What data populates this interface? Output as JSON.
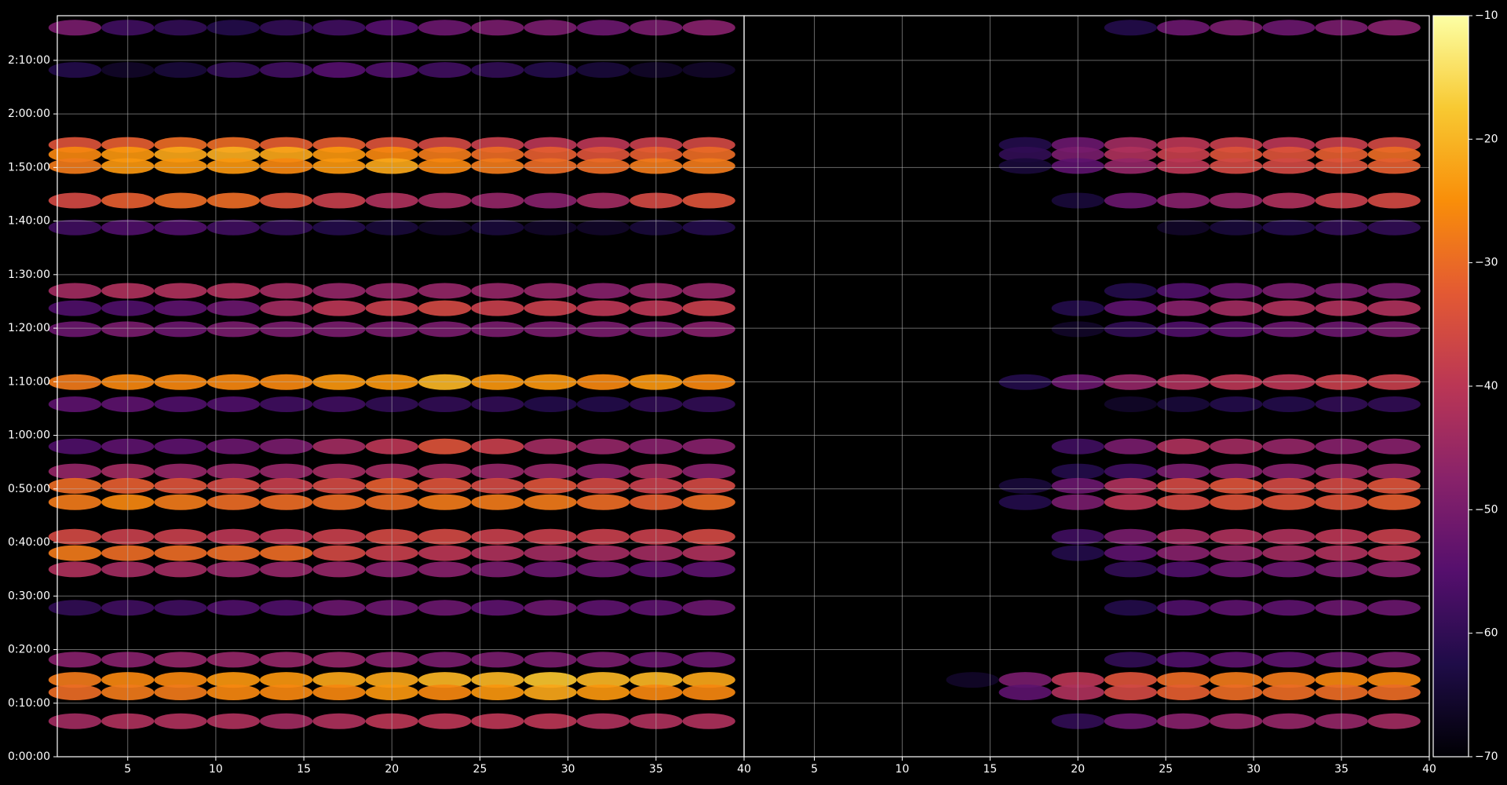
{
  "chart_data": {
    "type": "heatmap",
    "colormap": "inferno",
    "grid": true,
    "x": [
      2,
      5,
      8,
      11,
      14,
      17,
      20,
      23,
      26,
      29,
      32,
      35,
      38
    ],
    "y": [
      8166,
      7692,
      6853,
      6745,
      6616,
      6229,
      5928,
      5218,
      5024,
      4788,
      4196,
      3948,
      3475,
      3195,
      3034,
      2851,
      2464,
      2281,
      2098,
      1668,
      1087,
      861,
      721,
      398
    ],
    "xlim": [
      1,
      40
    ],
    "xticks": [
      5,
      10,
      15,
      20,
      25,
      30,
      35,
      40
    ],
    "ylim": [
      0,
      8300
    ],
    "yticks": [
      {
        "value": 0,
        "label": "0:00:00"
      },
      {
        "value": 600,
        "label": "0:10:00"
      },
      {
        "value": 1200,
        "label": "0:20:00"
      },
      {
        "value": 1800,
        "label": "0:30:00"
      },
      {
        "value": 2400,
        "label": "0:40:00"
      },
      {
        "value": 3000,
        "label": "0:50:00"
      },
      {
        "value": 3600,
        "label": "1:00:00"
      },
      {
        "value": 4200,
        "label": "1:10:00"
      },
      {
        "value": 4800,
        "label": "1:20:00"
      },
      {
        "value": 5400,
        "label": "1:30:00"
      },
      {
        "value": 6000,
        "label": "1:40:00"
      },
      {
        "value": 6600,
        "label": "1:50:00"
      },
      {
        "value": 7200,
        "label": "2:00:00"
      },
      {
        "value": 7800,
        "label": "2:10:00"
      }
    ],
    "clim": [
      -70,
      -10
    ],
    "cticks": [
      {
        "value": -70,
        "label": "−70"
      },
      {
        "value": -60,
        "label": "−60"
      },
      {
        "value": -50,
        "label": "−50"
      },
      {
        "value": -40,
        "label": "−40"
      },
      {
        "value": -30,
        "label": "−30"
      },
      {
        "value": -20,
        "label": "−20"
      },
      {
        "value": -10,
        "label": "−10"
      }
    ],
    "panels": [
      {
        "values": [
          [
            -50,
            -58,
            -60,
            -62,
            -60,
            -58,
            -55,
            -52,
            -50,
            -50,
            -52,
            -50,
            -48
          ],
          [
            -62,
            -66,
            -64,
            -60,
            -58,
            -55,
            -56,
            -58,
            -60,
            -62,
            -64,
            -66,
            -66
          ],
          [
            -34,
            -32,
            -30,
            -30,
            -32,
            -32,
            -34,
            -36,
            -38,
            -40,
            -40,
            -38,
            -36
          ],
          [
            -26,
            -24,
            -22,
            -21,
            -22,
            -24,
            -26,
            -28,
            -30,
            -32,
            -34,
            -32,
            -30
          ],
          [
            -28,
            -24,
            -24,
            -24,
            -26,
            -24,
            -22,
            -26,
            -28,
            -30,
            -30,
            -28,
            -28
          ],
          [
            -36,
            -32,
            -30,
            -30,
            -34,
            -38,
            -42,
            -44,
            -46,
            -48,
            -44,
            -36,
            -34
          ],
          [
            -58,
            -56,
            -56,
            -58,
            -60,
            -62,
            -64,
            -66,
            -64,
            -66,
            -66,
            -64,
            -62
          ],
          [
            -44,
            -42,
            -42,
            -42,
            -44,
            -46,
            -46,
            -46,
            -46,
            -46,
            -48,
            -46,
            -46
          ],
          [
            -56,
            -56,
            -54,
            -52,
            -44,
            -40,
            -38,
            -36,
            -38,
            -38,
            -40,
            -40,
            -38
          ],
          [
            -52,
            -50,
            -52,
            -50,
            -50,
            -50,
            -50,
            -50,
            -50,
            -50,
            -50,
            -50,
            -48
          ],
          [
            -28,
            -26,
            -26,
            -26,
            -26,
            -24,
            -24,
            -20,
            -24,
            -24,
            -26,
            -24,
            -26
          ],
          [
            -54,
            -54,
            -56,
            -56,
            -58,
            -58,
            -60,
            -60,
            -60,
            -62,
            -62,
            -60,
            -60
          ],
          [
            -56,
            -54,
            -54,
            -52,
            -50,
            -44,
            -40,
            -34,
            -38,
            -44,
            -46,
            -48,
            -48
          ],
          [
            -46,
            -44,
            -46,
            -46,
            -46,
            -44,
            -44,
            -44,
            -46,
            -46,
            -48,
            -44,
            -48
          ],
          [
            -30,
            -32,
            -34,
            -36,
            -38,
            -36,
            -32,
            -34,
            -36,
            -34,
            -36,
            -38,
            -36
          ],
          [
            -28,
            -26,
            -28,
            -30,
            -30,
            -30,
            -30,
            -28,
            -28,
            -28,
            -30,
            -32,
            -30
          ],
          [
            -36,
            -38,
            -38,
            -40,
            -40,
            -38,
            -36,
            -36,
            -38,
            -38,
            -38,
            -38,
            -36
          ],
          [
            -28,
            -30,
            -30,
            -30,
            -30,
            -36,
            -38,
            -40,
            -42,
            -44,
            -44,
            -44,
            -42
          ],
          [
            -42,
            -44,
            -44,
            -46,
            -46,
            -46,
            -48,
            -48,
            -50,
            -52,
            -52,
            -54,
            -54
          ],
          [
            -60,
            -58,
            -58,
            -56,
            -56,
            -52,
            -52,
            -52,
            -54,
            -52,
            -54,
            -54,
            -52
          ],
          [
            -48,
            -48,
            -46,
            -46,
            -46,
            -46,
            -48,
            -50,
            -50,
            -50,
            -50,
            -52,
            -52
          ],
          [
            -28,
            -26,
            -26,
            -24,
            -24,
            -22,
            -22,
            -20,
            -20,
            -18,
            -20,
            -20,
            -22
          ],
          [
            -30,
            -28,
            -28,
            -26,
            -26,
            -26,
            -24,
            -26,
            -24,
            -22,
            -24,
            -26,
            -26
          ],
          [
            -44,
            -42,
            -42,
            -42,
            -44,
            -42,
            -40,
            -40,
            -40,
            -40,
            -42,
            -42,
            -42
          ]
        ]
      },
      {
        "values": [
          [
            null,
            null,
            null,
            null,
            null,
            null,
            null,
            -62,
            -52,
            -50,
            -52,
            -50,
            -48
          ],
          [
            null,
            null,
            null,
            null,
            null,
            null,
            null,
            null,
            null,
            null,
            null,
            null,
            null
          ],
          [
            null,
            null,
            null,
            null,
            null,
            -62,
            -52,
            -44,
            -40,
            -38,
            -40,
            -38,
            -36
          ],
          [
            null,
            null,
            null,
            null,
            null,
            -60,
            -50,
            -42,
            -38,
            -34,
            -34,
            -32,
            -30
          ],
          [
            null,
            null,
            null,
            null,
            null,
            -64,
            -54,
            -46,
            -40,
            -36,
            -36,
            -34,
            -32
          ],
          [
            null,
            null,
            null,
            null,
            null,
            null,
            -64,
            -52,
            -48,
            -46,
            -42,
            -38,
            -36
          ],
          [
            null,
            null,
            null,
            null,
            null,
            null,
            null,
            null,
            -66,
            -64,
            -62,
            -60,
            -60
          ],
          [
            null,
            null,
            null,
            null,
            null,
            null,
            null,
            -62,
            -56,
            -52,
            -50,
            -50,
            -50
          ],
          [
            null,
            null,
            null,
            null,
            null,
            null,
            -62,
            -54,
            -48,
            -44,
            -42,
            -42,
            -42
          ],
          [
            null,
            null,
            null,
            null,
            null,
            null,
            -66,
            -60,
            -56,
            -54,
            -52,
            -52,
            -50
          ],
          [
            null,
            null,
            null,
            null,
            null,
            -62,
            -52,
            -46,
            -42,
            -40,
            -40,
            -38,
            -38
          ],
          [
            null,
            null,
            null,
            null,
            null,
            null,
            null,
            -66,
            -64,
            -62,
            -62,
            -60,
            -60
          ],
          [
            null,
            null,
            null,
            null,
            null,
            null,
            -58,
            -50,
            -42,
            -44,
            -46,
            -48,
            -48
          ],
          [
            null,
            null,
            null,
            null,
            null,
            null,
            -62,
            -58,
            -50,
            -48,
            -48,
            -46,
            -46
          ],
          [
            null,
            null,
            null,
            null,
            null,
            -64,
            -52,
            -42,
            -36,
            -34,
            -36,
            -36,
            -34
          ],
          [
            null,
            null,
            null,
            null,
            null,
            -62,
            -50,
            -40,
            -36,
            -34,
            -34,
            -34,
            -32
          ],
          [
            null,
            null,
            null,
            null,
            null,
            null,
            -58,
            -50,
            -44,
            -42,
            -42,
            -40,
            -38
          ],
          [
            null,
            null,
            null,
            null,
            null,
            null,
            -62,
            -54,
            -48,
            -46,
            -44,
            -42,
            -40
          ],
          [
            null,
            null,
            null,
            null,
            null,
            null,
            null,
            -60,
            -56,
            -52,
            -52,
            -50,
            -48
          ],
          [
            null,
            null,
            null,
            null,
            null,
            null,
            null,
            -62,
            -56,
            -54,
            -54,
            -52,
            -52
          ],
          [
            null,
            null,
            null,
            null,
            null,
            null,
            null,
            -60,
            -56,
            -54,
            -54,
            -52,
            -50
          ],
          [
            null,
            null,
            null,
            null,
            -66,
            -50,
            -40,
            -34,
            -30,
            -28,
            -28,
            -26,
            -26
          ],
          [
            null,
            null,
            null,
            null,
            null,
            -54,
            -42,
            -36,
            -32,
            -30,
            -30,
            -30,
            -30
          ],
          [
            null,
            null,
            null,
            null,
            null,
            null,
            -60,
            -52,
            -48,
            -46,
            -46,
            -46,
            -44
          ]
        ]
      }
    ]
  }
}
